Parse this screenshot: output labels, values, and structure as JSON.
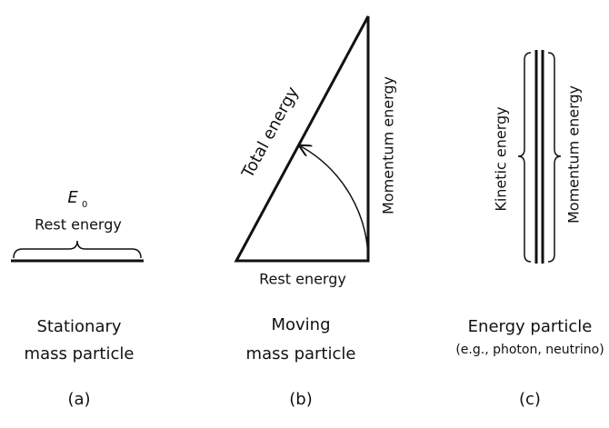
{
  "panel_a": {
    "symbol": "E",
    "subscript": "0",
    "brace_label": "Rest energy",
    "caption_line1": "Stationary",
    "caption_line2": "mass particle",
    "tag": "(a)"
  },
  "panel_b": {
    "hypotenuse_label": "Total energy",
    "vertical_label": "Momentum energy",
    "base_label": "Rest energy",
    "caption_line1": "Moving",
    "caption_line2": "mass particle",
    "tag": "(b)"
  },
  "panel_c": {
    "left_label": "Kinetic energy",
    "right_label": "Momentum energy",
    "caption_line1": "Energy particle",
    "caption_line2": "(e.g., photon, neutrino)",
    "tag": "(c)"
  }
}
